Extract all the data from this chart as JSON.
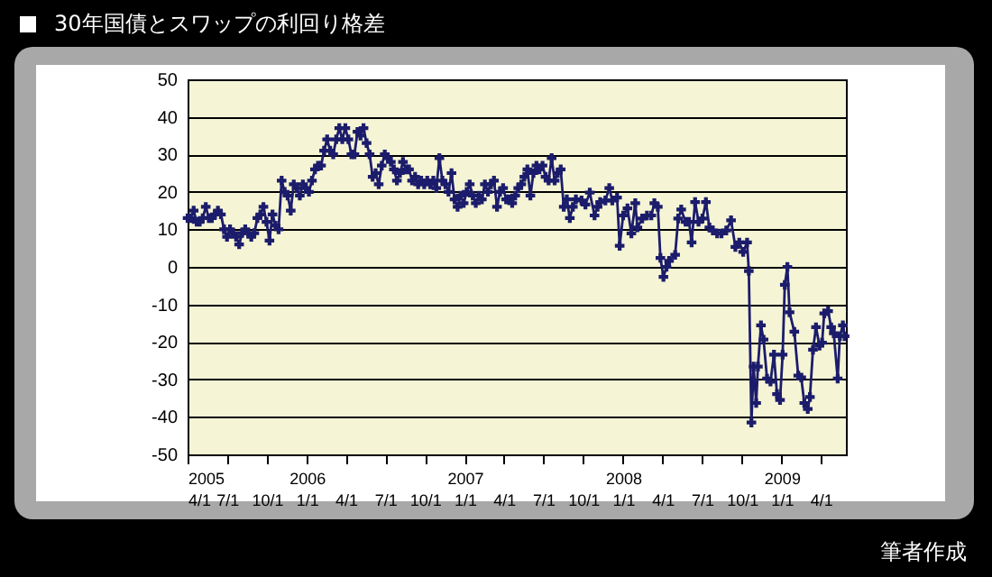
{
  "chart_data": {
    "type": "line",
    "title": "30年国債とスワップの利回り格差",
    "annotations": [
      "筆者作成"
    ],
    "x": [
      "2005-04-01",
      "2005-04-08",
      "2005-04-15",
      "2005-04-22",
      "2005-04-29",
      "2005-05-06",
      "2005-05-13",
      "2005-05-20",
      "2005-05-27",
      "2005-06-03",
      "2005-06-10",
      "2005-06-17",
      "2005-06-24",
      "2005-07-01",
      "2005-07-08",
      "2005-07-15",
      "2005-07-22",
      "2005-07-29",
      "2005-08-05",
      "2005-08-12",
      "2005-08-19",
      "2005-08-26",
      "2005-09-02",
      "2005-09-09",
      "2005-09-16",
      "2005-09-23",
      "2005-09-30",
      "2005-10-07",
      "2005-10-14",
      "2005-10-21",
      "2005-10-28",
      "2005-11-04",
      "2005-11-11",
      "2005-11-18",
      "2005-11-25",
      "2005-12-02",
      "2005-12-09",
      "2005-12-16",
      "2005-12-23",
      "2005-12-30",
      "2006-01-06",
      "2006-01-13",
      "2006-01-20",
      "2006-01-27",
      "2006-02-03",
      "2006-02-10",
      "2006-02-17",
      "2006-02-24",
      "2006-03-03",
      "2006-03-10",
      "2006-03-17",
      "2006-03-24",
      "2006-03-31",
      "2006-04-07",
      "2006-04-14",
      "2006-04-21",
      "2006-04-28",
      "2006-05-05",
      "2006-05-12",
      "2006-05-19",
      "2006-05-26",
      "2006-06-02",
      "2006-06-09",
      "2006-06-16",
      "2006-06-23",
      "2006-06-30",
      "2006-07-07",
      "2006-07-14",
      "2006-07-21",
      "2006-07-28",
      "2006-08-04",
      "2006-08-11",
      "2006-08-18",
      "2006-08-25",
      "2006-09-01",
      "2006-09-08",
      "2006-09-15",
      "2006-09-22",
      "2006-09-29",
      "2006-10-06",
      "2006-10-13",
      "2006-10-20",
      "2006-10-27",
      "2006-11-03",
      "2006-11-10",
      "2006-11-17",
      "2006-11-24",
      "2006-12-01",
      "2006-12-08",
      "2006-12-15",
      "2006-12-22",
      "2006-12-29",
      "2007-01-05",
      "2007-01-12",
      "2007-01-19",
      "2007-01-26",
      "2007-02-02",
      "2007-02-09",
      "2007-02-16",
      "2007-02-23",
      "2007-03-02",
      "2007-03-09",
      "2007-03-16",
      "2007-03-23",
      "2007-03-30",
      "2007-04-06",
      "2007-04-13",
      "2007-04-20",
      "2007-04-27",
      "2007-05-04",
      "2007-05-11",
      "2007-05-18",
      "2007-05-25",
      "2007-06-01",
      "2007-06-08",
      "2007-06-15",
      "2007-06-22",
      "2007-06-29",
      "2007-07-06",
      "2007-07-13",
      "2007-07-20",
      "2007-07-27",
      "2007-08-03",
      "2007-08-10",
      "2007-08-17",
      "2007-08-24",
      "2007-08-31",
      "2007-09-07",
      "2007-09-14",
      "2007-09-27",
      "2007-10-06",
      "2007-10-16",
      "2007-10-27",
      "2007-11-03",
      "2007-11-09",
      "2007-11-21",
      "2007-11-30",
      "2007-12-07",
      "2007-12-18",
      "2007-12-24",
      "2008-01-01",
      "2008-01-11",
      "2008-01-20",
      "2008-01-29",
      "2008-02-03",
      "2008-02-14",
      "2008-02-25",
      "2008-03-06",
      "2008-03-13",
      "2008-03-21",
      "2008-03-27",
      "2008-04-03",
      "2008-04-10",
      "2008-04-16",
      "2008-04-30",
      "2008-05-07",
      "2008-05-14",
      "2008-05-24",
      "2008-06-01",
      "2008-06-07",
      "2008-06-15",
      "2008-06-23",
      "2008-07-02",
      "2008-07-10",
      "2008-07-18",
      "2008-07-26",
      "2008-08-05",
      "2008-08-15",
      "2008-08-26",
      "2008-09-06",
      "2008-09-16",
      "2008-09-25",
      "2008-10-04",
      "2008-10-13",
      "2008-10-17",
      "2008-10-23",
      "2008-10-28",
      "2008-11-03",
      "2008-11-07",
      "2008-11-14",
      "2008-11-20",
      "2008-11-28",
      "2008-12-06",
      "2008-12-14",
      "2008-12-21",
      "2008-12-28",
      "2009-01-03",
      "2009-01-08",
      "2009-01-14",
      "2009-01-19",
      "2009-01-30",
      "2009-02-08",
      "2009-02-15",
      "2009-02-22",
      "2009-03-02",
      "2009-03-07",
      "2009-03-14",
      "2009-03-21",
      "2009-03-29",
      "2009-04-04",
      "2009-04-09",
      "2009-04-18",
      "2009-04-25",
      "2009-05-01",
      "2009-05-10",
      "2009-05-15",
      "2009-05-22",
      "2009-05-26"
    ],
    "series": [
      {
        "color": "#1c1c6c",
        "values": [
          13,
          13,
          15,
          12,
          12,
          13,
          16,
          13,
          13,
          14,
          15,
          14,
          10,
          8,
          10,
          9,
          8,
          6,
          9,
          10,
          9,
          8,
          9,
          13,
          14,
          16,
          12,
          7,
          14,
          11,
          10,
          23,
          20,
          19,
          15,
          22,
          21,
          19,
          22,
          21,
          20,
          23,
          26,
          27,
          27,
          31,
          34,
          31,
          30,
          34,
          37,
          34,
          37,
          34,
          30,
          30,
          36,
          35,
          37,
          33,
          30,
          24,
          25,
          22,
          27,
          30,
          29,
          28,
          26,
          23,
          25,
          28,
          26,
          26,
          23,
          24,
          22,
          23,
          22,
          23,
          22,
          23,
          21,
          29,
          23,
          22,
          20,
          25,
          18,
          16,
          19,
          17,
          20,
          22,
          19,
          17,
          19,
          18,
          22,
          20,
          22,
          23,
          16,
          20,
          21,
          18,
          18,
          17,
          19,
          21,
          22,
          24,
          26,
          19,
          25,
          27,
          26,
          27,
          24,
          23,
          29,
          23,
          25,
          26,
          16,
          18,
          13,
          16,
          18,
          17.7,
          16.6,
          19.8,
          13.7,
          16,
          17.3,
          17.7,
          21,
          17.7,
          18.5,
          5.6,
          13.7,
          15.6,
          8.9,
          17,
          10.5,
          12.9,
          13.7,
          13.7,
          17,
          16,
          2.4,
          -2.7,
          0,
          1.6,
          3.2,
          12.9,
          15.3,
          12,
          12,
          6.5,
          17.3,
          12,
          12.9,
          17.3,
          10.5,
          9.7,
          8.9,
          8.9,
          9.7,
          12.4,
          5.3,
          6.5,
          4,
          6.5,
          -1.1,
          -41.5,
          -26.6,
          -36.3,
          -26.6,
          -15.6,
          -19.4,
          -29.8,
          -30.6,
          -23.4,
          -33.9,
          -35.5,
          -23.4,
          -4.8,
          0,
          -12.1,
          -17.3,
          -29,
          -29.5,
          -36.3,
          -37.9,
          -34.7,
          -22.1,
          -16.1,
          -21,
          -20.2,
          -12.4,
          -11.8,
          -16.1,
          -17.7,
          -29.8,
          -18.5,
          -15.6,
          -18.5
        ]
      }
    ],
    "xlim": [
      "2005-04-01",
      "2009-05-29"
    ],
    "xticks": [
      {
        "value": "2005-04-01",
        "label": "2005\n4/1"
      },
      {
        "value": "2005-07-01",
        "label": "7/1"
      },
      {
        "value": "2005-10-01",
        "label": "10/1"
      },
      {
        "value": "2006-01-01",
        "label": "2006\n1/1"
      },
      {
        "value": "2006-04-01",
        "label": "4/1"
      },
      {
        "value": "2006-07-01",
        "label": "7/1"
      },
      {
        "value": "2006-10-01",
        "label": "10/1"
      },
      {
        "value": "2007-01-01",
        "label": "2007\n1/1"
      },
      {
        "value": "2007-04-01",
        "label": "4/1"
      },
      {
        "value": "2007-07-01",
        "label": "7/1"
      },
      {
        "value": "2007-10-01",
        "label": "10/1"
      },
      {
        "value": "2008-01-01",
        "label": "2008\n1/1"
      },
      {
        "value": "2008-04-01",
        "label": "4/1"
      },
      {
        "value": "2008-07-01",
        "label": "7/1"
      },
      {
        "value": "2008-10-01",
        "label": "10/1"
      },
      {
        "value": "2009-01-01",
        "label": "2009\n1/1"
      },
      {
        "value": "2009-04-01",
        "label": "4/1"
      }
    ],
    "ylim": [
      -50,
      50
    ],
    "yticks": [
      -50,
      -40,
      -30,
      -20,
      -10,
      0,
      10,
      20,
      30,
      40,
      50
    ],
    "grid": "y",
    "marker": "cross",
    "line_style": "solid"
  }
}
